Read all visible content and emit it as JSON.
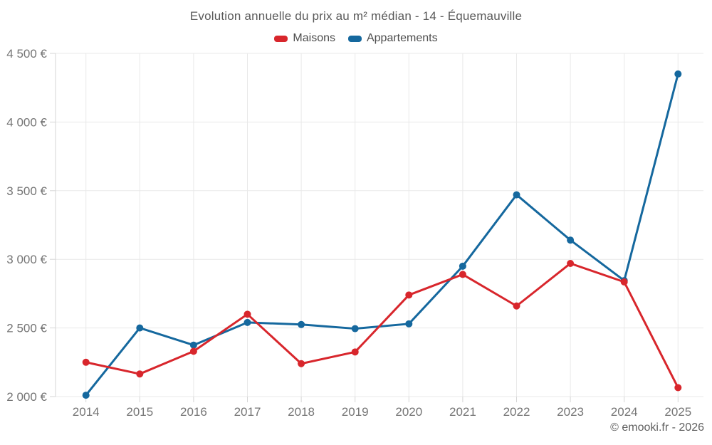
{
  "chart_data": {
    "type": "line",
    "title": "Evolution annuelle du prix au m² médian - 14 - Équemauville",
    "categories": [
      "2014",
      "2015",
      "2016",
      "2017",
      "2018",
      "2019",
      "2020",
      "2021",
      "2022",
      "2023",
      "2024",
      "2025"
    ],
    "series": [
      {
        "name": "Maisons",
        "color": "#d8262c",
        "values": [
          2250,
          2165,
          2330,
          2600,
          2240,
          2325,
          2740,
          2890,
          2660,
          2970,
          2835,
          2065
        ]
      },
      {
        "name": "Appartements",
        "color": "#15689e",
        "values": [
          2010,
          2500,
          2375,
          2540,
          2525,
          2495,
          2530,
          2950,
          3470,
          3140,
          2845,
          4350
        ]
      }
    ],
    "ylim": [
      2000,
      4500
    ],
    "yticks": [
      {
        "value": 2000,
        "label": "2 000 €"
      },
      {
        "value": 2500,
        "label": "2 500 €"
      },
      {
        "value": 3000,
        "label": "3 000 €"
      },
      {
        "value": 3500,
        "label": "3 500 €"
      },
      {
        "value": 4000,
        "label": "4 000 €"
      },
      {
        "value": 4500,
        "label": "4 500 €"
      }
    ],
    "grid": true,
    "legend_position": "top",
    "xlabel": "",
    "ylabel": ""
  },
  "footer": {
    "credit": "© emooki.fr - 2026"
  },
  "theme": {
    "background": "#ffffff",
    "grid_color": "#e9e9e9",
    "axis_color": "#d6d6d6",
    "tick_label_color": "#757575",
    "title_color": "#595959",
    "legend_text_color": "#4d4d4d",
    "footer_color": "#616161"
  }
}
